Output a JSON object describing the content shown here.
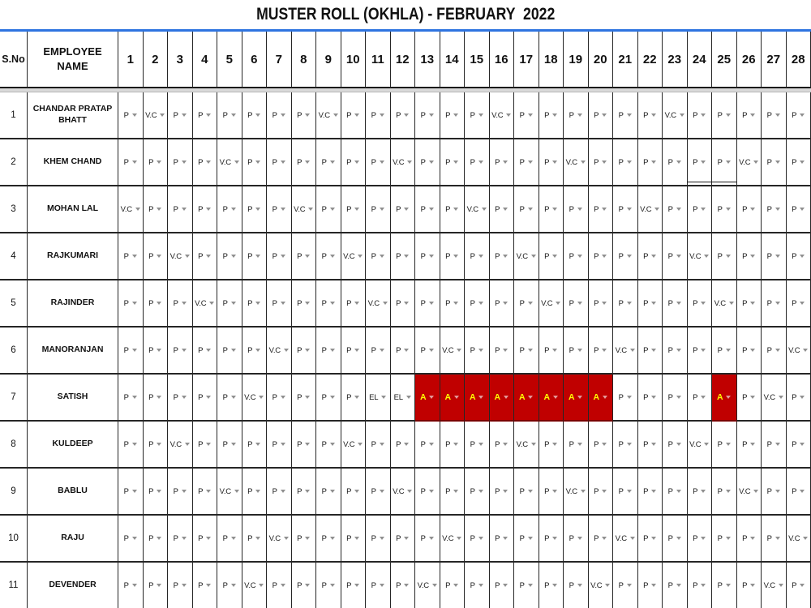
{
  "title": "MUSTER ROLL (OKHLA) - FEBRUARY  2022",
  "colors": {
    "absent_bg": "#c00000",
    "absent_text": "#ffff00",
    "header_rule_blue": "#2e74e0",
    "dropdown_arrow_gray": "#8f8f8f"
  },
  "table": {
    "sno_header": "S.No",
    "name_header": "EMPLOYEE NAME",
    "days": [
      "1",
      "2",
      "3",
      "4",
      "5",
      "6",
      "7",
      "8",
      "9",
      "10",
      "11",
      "12",
      "13",
      "14",
      "15",
      "16",
      "17",
      "18",
      "19",
      "20",
      "21",
      "22",
      "23",
      "24",
      "25",
      "26",
      "27",
      "28"
    ],
    "rows": [
      {
        "sno": "1",
        "name": "CHANDAR PRATAP BHATT",
        "cells": [
          "P",
          "V.C",
          "P",
          "P",
          "P",
          "P",
          "P",
          "P",
          "V.C",
          "P",
          "P",
          "P",
          "P",
          "P",
          "P",
          "V.C",
          "P",
          "P",
          "P",
          "P",
          "P",
          "P",
          "V.C",
          "P",
          "P",
          "P",
          "P",
          "P"
        ]
      },
      {
        "sno": "2",
        "name": "KHEM CHAND",
        "extra_line_days": [
          24,
          25
        ],
        "cells": [
          "P",
          "P",
          "P",
          "P",
          "V.C",
          "P",
          "P",
          "P",
          "P",
          "P",
          "P",
          "V.C",
          "P",
          "P",
          "P",
          "P",
          "P",
          "P",
          "V.C",
          "P",
          "P",
          "P",
          "P",
          "P",
          "P",
          "V.C",
          "P",
          "P"
        ]
      },
      {
        "sno": "3",
        "name": "MOHAN LAL",
        "cells": [
          "V.C",
          "P",
          "P",
          "P",
          "P",
          "P",
          "P",
          "V.C",
          "P",
          "P",
          "P",
          "P",
          "P",
          "P",
          "V.C",
          "P",
          "P",
          "P",
          "P",
          "P",
          "P",
          "V.C",
          "P",
          "P",
          "P",
          "P",
          "P",
          "P"
        ]
      },
      {
        "sno": "4",
        "name": "RAJKUMARI",
        "cells": [
          "P",
          "P",
          "V.C",
          "P",
          "P",
          "P",
          "P",
          "P",
          "P",
          "V.C",
          "P",
          "P",
          "P",
          "P",
          "P",
          "P",
          "V.C",
          "P",
          "P",
          "P",
          "P",
          "P",
          "P",
          "V.C",
          "P",
          "P",
          "P",
          "P"
        ]
      },
      {
        "sno": "5",
        "name": "RAJINDER",
        "cells": [
          "P",
          "P",
          "P",
          "V.C",
          "P",
          "P",
          "P",
          "P",
          "P",
          "P",
          "V.C",
          "P",
          "P",
          "P",
          "P",
          "P",
          "P",
          "V.C",
          "P",
          "P",
          "P",
          "P",
          "P",
          "P",
          "V.C",
          "P",
          "P",
          "P"
        ]
      },
      {
        "sno": "6",
        "name": "MANORANJAN",
        "cells": [
          "P",
          "P",
          "P",
          "P",
          "P",
          "P",
          "V.C",
          "P",
          "P",
          "P",
          "P",
          "P",
          "P",
          "V.C",
          "P",
          "P",
          "P",
          "P",
          "P",
          "P",
          "V.C",
          "P",
          "P",
          "P",
          "P",
          "P",
          "P",
          "V.C"
        ]
      },
      {
        "sno": "7",
        "name": "SATISH",
        "cells": [
          "P",
          "P",
          "P",
          "P",
          "P",
          "V.C",
          "P",
          "P",
          "P",
          "P",
          "EL",
          "EL",
          "A",
          "A",
          "A",
          "A",
          "A",
          "A",
          "A",
          "A",
          "P",
          "P",
          "P",
          "P",
          "A",
          "P",
          "V.C",
          "P"
        ]
      },
      {
        "sno": "8",
        "name": "KULDEEP",
        "cells": [
          "P",
          "P",
          "V.C",
          "P",
          "P",
          "P",
          "P",
          "P",
          "P",
          "V.C",
          "P",
          "P",
          "P",
          "P",
          "P",
          "P",
          "V.C",
          "P",
          "P",
          "P",
          "P",
          "P",
          "P",
          "V.C",
          "P",
          "P",
          "P",
          "P"
        ]
      },
      {
        "sno": "9",
        "name": "BABLU",
        "cells": [
          "P",
          "P",
          "P",
          "P",
          "V.C",
          "P",
          "P",
          "P",
          "P",
          "P",
          "P",
          "V.C",
          "P",
          "P",
          "P",
          "P",
          "P",
          "P",
          "V.C",
          "P",
          "P",
          "P",
          "P",
          "P",
          "P",
          "V.C",
          "P",
          "P"
        ]
      },
      {
        "sno": "10",
        "name": "RAJU",
        "cells": [
          "P",
          "P",
          "P",
          "P",
          "P",
          "P",
          "V.C",
          "P",
          "P",
          "P",
          "P",
          "P",
          "P",
          "V.C",
          "P",
          "P",
          "P",
          "P",
          "P",
          "P",
          "V.C",
          "P",
          "P",
          "P",
          "P",
          "P",
          "P",
          "V.C"
        ]
      },
      {
        "sno": "11",
        "name": "DEVENDER",
        "cells": [
          "P",
          "P",
          "P",
          "P",
          "P",
          "V.C",
          "P",
          "P",
          "P",
          "P",
          "P",
          "P",
          "V.C",
          "P",
          "P",
          "P",
          "P",
          "P",
          "P",
          "V.C",
          "P",
          "P",
          "P",
          "P",
          "P",
          "P",
          "V.C",
          "P"
        ]
      }
    ]
  }
}
